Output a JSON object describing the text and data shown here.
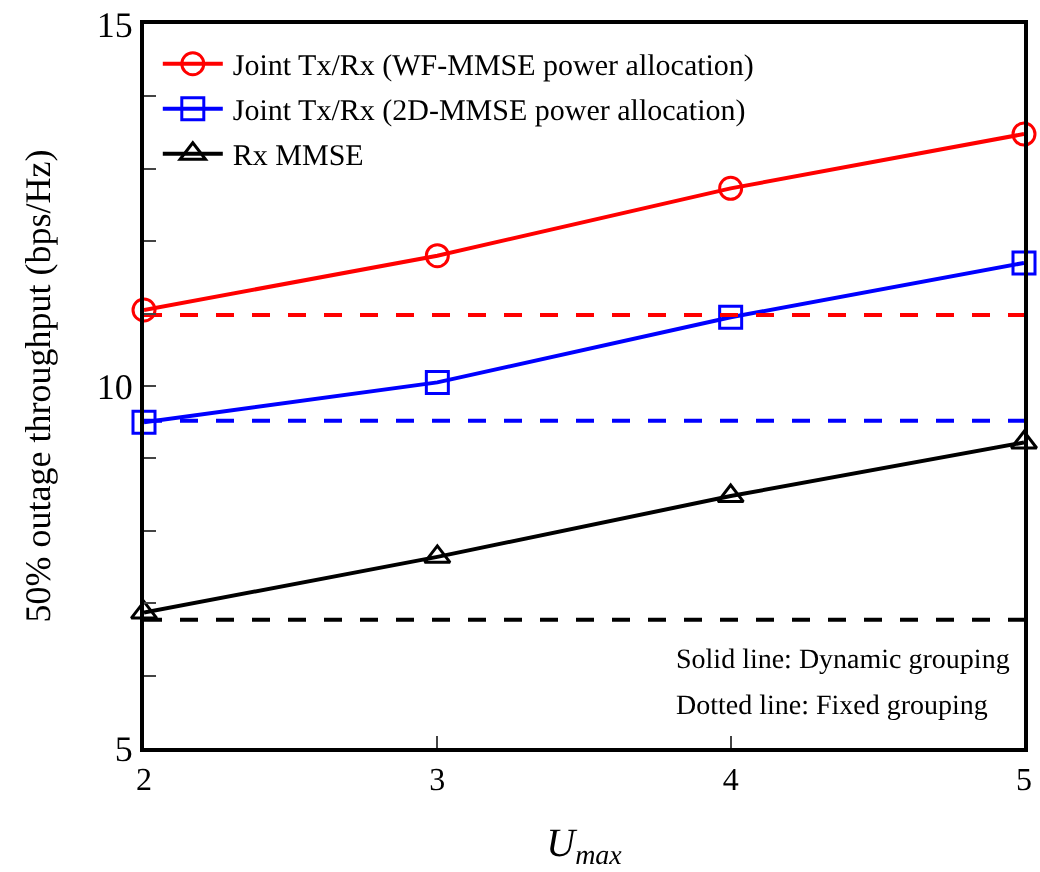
{
  "chart_data": {
    "type": "line",
    "xlabel": "U$_{max}$",
    "ylabel": "50% outage throughput (bps/Hz)",
    "x": [
      2,
      3,
      4,
      5
    ],
    "series": [
      {
        "name": "Joint Tx/Rx (WF-MMSE power allocation)",
        "color": "#ff0000",
        "values": [
          11.05,
          11.8,
          12.73,
          13.48
        ],
        "marker": "circle",
        "line_style": "solid"
      },
      {
        "name": "Joint Tx/Rx (2D-MMSE power allocation)",
        "color": "#0000ff",
        "values": [
          9.5,
          10.05,
          10.95,
          11.7
        ],
        "marker": "square",
        "line_style": "solid"
      },
      {
        "name": "Rx MMSE",
        "color": "#000000",
        "values": [
          6.87,
          7.64,
          8.48,
          9.22
        ],
        "marker": "triangle",
        "line_style": "solid"
      },
      {
        "color": "#ff0000",
        "values": [
          10.98,
          10.98,
          10.98,
          10.98
        ],
        "marker": "none",
        "line_style": "dashed"
      },
      {
        "color": "#0000ff",
        "values": [
          9.52,
          9.52,
          9.52,
          9.52
        ],
        "marker": "none",
        "line_style": "dashed"
      },
      {
        "color": "#000000",
        "values": [
          6.77,
          6.77,
          6.77,
          6.77
        ],
        "marker": "none",
        "line_style": "dashed"
      }
    ],
    "xlim": [
      2,
      5
    ],
    "xticks": [
      2,
      3,
      4,
      5
    ],
    "ylim": [
      5,
      15
    ],
    "yticks": [
      5,
      {
        "value": 6,
        "label": null
      },
      {
        "value": 7,
        "label": null
      },
      {
        "value": 8,
        "label": null
      },
      {
        "value": 9,
        "label": null
      },
      10,
      {
        "value": 11,
        "label": null
      },
      {
        "value": 12,
        "label": null
      },
      {
        "value": 13,
        "label": null
      },
      {
        "value": 14,
        "label": null
      },
      15
    ],
    "grid": false,
    "legend": "top left",
    "annotations": [
      "Solid line: Dynamic grouping",
      "Dotted line: Fixed grouping"
    ]
  }
}
